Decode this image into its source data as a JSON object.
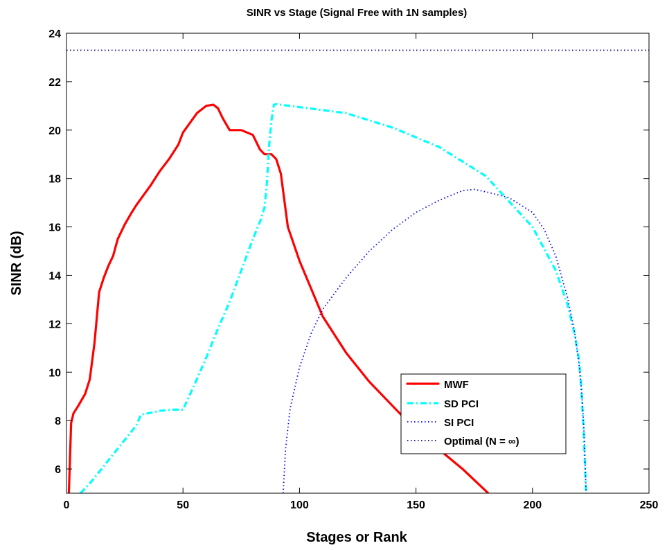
{
  "chart_data": {
    "type": "line",
    "title": "SINR vs Stage (Signal Free with 1N samples)",
    "xlabel": "Stages or Rank",
    "ylabel": "SINR (dB)",
    "xlim": [
      0,
      250
    ],
    "ylim": [
      5,
      24
    ],
    "xticks": [
      0,
      50,
      100,
      150,
      200,
      250
    ],
    "yticks": [
      6,
      8,
      10,
      12,
      14,
      16,
      18,
      20,
      22,
      24
    ],
    "grid": false,
    "legend_position": "lower-right",
    "series": [
      {
        "name": "MWF",
        "color": "#ff0000",
        "style": "solid",
        "x": [
          1,
          2,
          3,
          5,
          8,
          10,
          12,
          14,
          16,
          18,
          20,
          22,
          25,
          28,
          30,
          33,
          36,
          40,
          44,
          48,
          50,
          53,
          56,
          60,
          63,
          65,
          67,
          70,
          75,
          80,
          83,
          85,
          88,
          90,
          92,
          95,
          100,
          110,
          120,
          130,
          140,
          150,
          160,
          170,
          181
        ],
        "y": [
          5.0,
          7.9,
          8.3,
          8.6,
          9.1,
          9.7,
          11.2,
          13.3,
          13.9,
          14.4,
          14.8,
          15.5,
          16.1,
          16.6,
          16.9,
          17.3,
          17.7,
          18.3,
          18.8,
          19.4,
          19.9,
          20.3,
          20.7,
          21.0,
          21.05,
          20.9,
          20.5,
          20.0,
          20.0,
          19.8,
          19.2,
          19.0,
          19.0,
          18.8,
          18.2,
          16.0,
          14.6,
          12.3,
          10.8,
          9.6,
          8.6,
          7.6,
          6.8,
          6.0,
          5.0
        ]
      },
      {
        "name": "SD PCI",
        "color": "#00ffff",
        "style": "dash-dot",
        "x": [
          6,
          10,
          15,
          20,
          25,
          30,
          32,
          35,
          40,
          45,
          50,
          55,
          60,
          65,
          70,
          75,
          80,
          83,
          85,
          86,
          87,
          88,
          89,
          90,
          100,
          120,
          140,
          160,
          180,
          200,
          210,
          215,
          218,
          220,
          221,
          222,
          223
        ],
        "y": [
          5.0,
          5.4,
          6.0,
          6.6,
          7.2,
          7.8,
          8.25,
          8.3,
          8.4,
          8.45,
          8.45,
          9.5,
          10.6,
          11.8,
          12.9,
          14.2,
          15.5,
          16.2,
          16.8,
          17.8,
          19.4,
          20.4,
          21.05,
          21.07,
          20.95,
          20.7,
          20.1,
          19.3,
          18.1,
          16.0,
          14.2,
          12.8,
          11.6,
          10.5,
          9.3,
          7.5,
          5.0
        ]
      },
      {
        "name": "SI PCI",
        "color": "#0000ff",
        "style": "dotted",
        "x": [
          93,
          94,
          96,
          100,
          105,
          110,
          120,
          130,
          140,
          150,
          160,
          170,
          175,
          180,
          190,
          200,
          205,
          210,
          215,
          218,
          220,
          221,
          222,
          223
        ],
        "y": [
          5.0,
          6.8,
          8.5,
          10.2,
          11.6,
          12.6,
          13.9,
          15.0,
          15.9,
          16.6,
          17.1,
          17.5,
          17.55,
          17.45,
          17.2,
          16.6,
          15.9,
          14.8,
          13.1,
          11.7,
          10.3,
          9.3,
          7.8,
          5.0
        ]
      },
      {
        "name": "Optimal (N = ∞)",
        "color": "#000080",
        "style": "dotted",
        "x": [
          0,
          250
        ],
        "y": [
          23.3,
          23.3
        ]
      }
    ]
  }
}
